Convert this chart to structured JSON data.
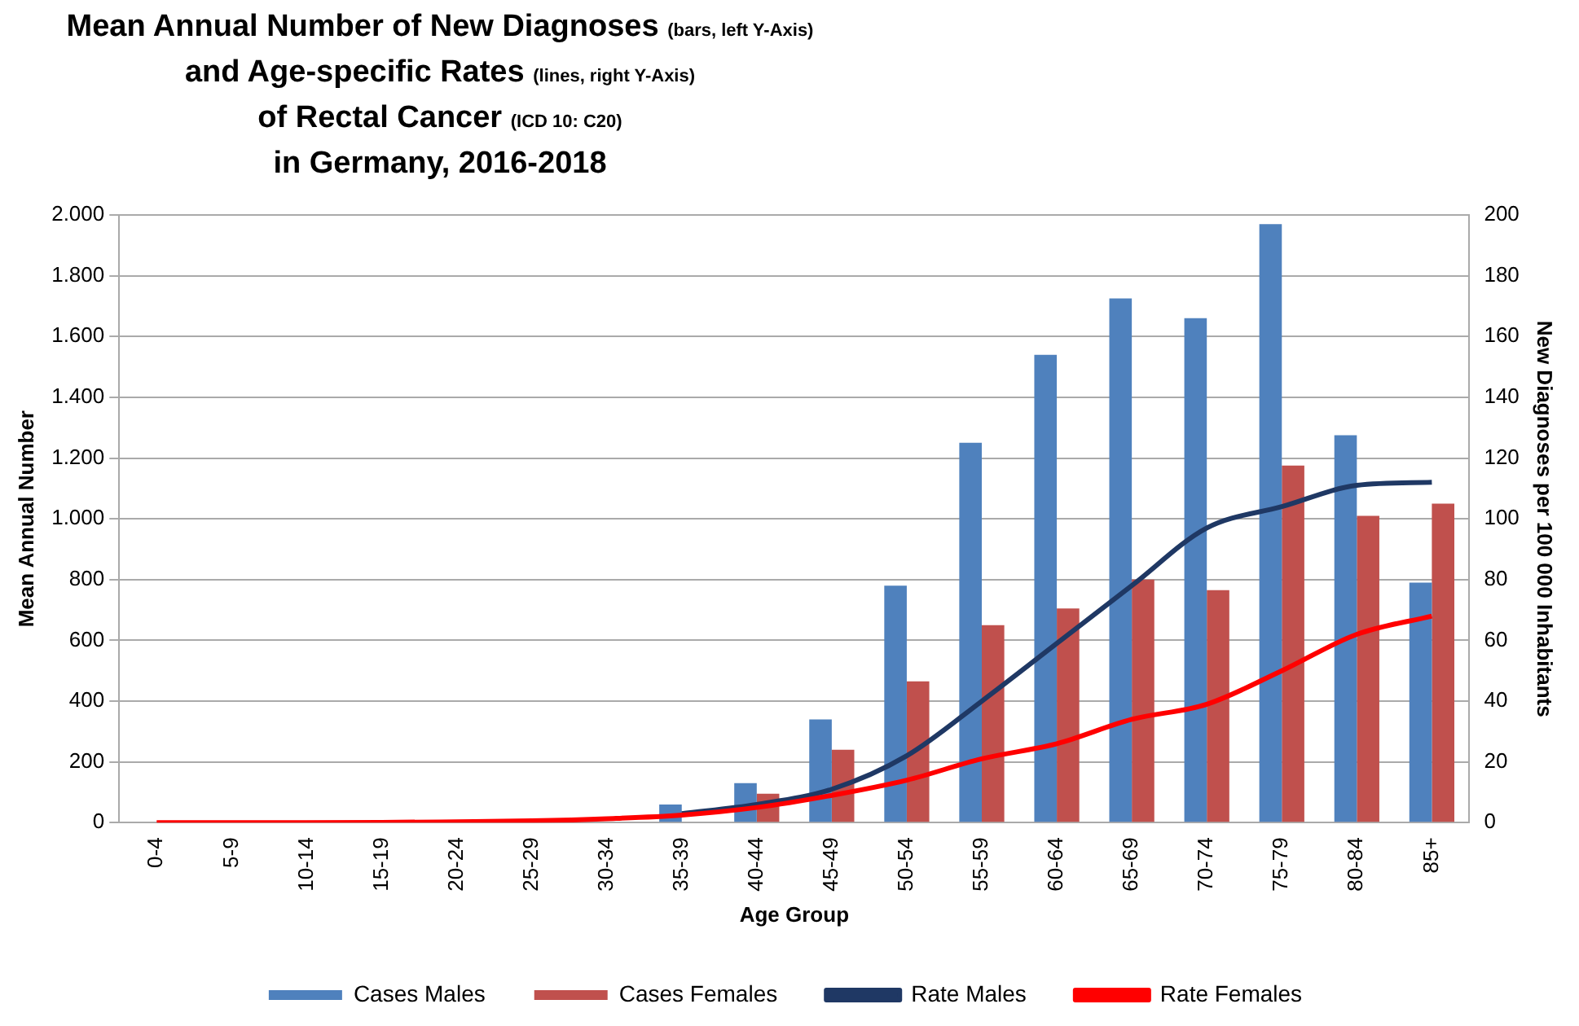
{
  "chart_data": {
    "type": "bar",
    "title": "Mean Annual Number of New Diagnoses (bars, left Y-Axis)\nand Age-specific Rates (lines, right Y-Axis)\nof Rectal Cancer (ICD 10: C20)\nin Germany, 2016-2018",
    "xlabel": "Age Group",
    "ylabel": "Mean Annual Number",
    "y2label": "New Diagnoses per 100 000 Inhabitants",
    "categories": [
      "0-4",
      "5-9",
      "10-14",
      "15-19",
      "20-24",
      "25-29",
      "30-34",
      "35-39",
      "40-44",
      "45-49",
      "50-54",
      "55-59",
      "60-64",
      "65-69",
      "70-74",
      "75-79",
      "80-84",
      "85+"
    ],
    "series": [
      {
        "name": "Cases Males",
        "color": "#4f81bd",
        "values": [
          0,
          0,
          0,
          null,
          null,
          null,
          null,
          60,
          130,
          340,
          780,
          1250,
          1540,
          1725,
          1660,
          1970,
          1275,
          790
        ]
      },
      {
        "name": "Cases Females",
        "color": "#c0504d",
        "values": [
          0,
          0,
          0,
          1,
          3,
          6,
          null,
          null,
          95,
          240,
          465,
          650,
          705,
          800,
          765,
          1175,
          1010,
          1050
        ]
      },
      {
        "name": "Rate Males",
        "type": "line",
        "axis": "y2",
        "color": "#1f3864",
        "values": [
          null,
          null,
          null,
          null,
          null,
          null,
          null,
          3,
          6,
          11,
          22,
          40,
          59,
          78,
          97,
          104,
          111,
          112
        ]
      },
      {
        "name": "Rate Females",
        "type": "line",
        "axis": "y2",
        "color": "#ff0000",
        "values": [
          0,
          0,
          0,
          0.1,
          0.3,
          0.6,
          1.3,
          2.5,
          5,
          9,
          14,
          21,
          26,
          34,
          39,
          50,
          62,
          68
        ]
      }
    ],
    "ylim": [
      0,
      2000
    ],
    "yticks": [
      0,
      200,
      400,
      600,
      800,
      {
        "value": 1000,
        "label": "1.000"
      },
      {
        "value": 1200,
        "label": "1.200"
      },
      {
        "value": 1400,
        "label": "1.400"
      },
      {
        "value": 1600,
        "label": "1.600"
      },
      {
        "value": 1800,
        "label": "1.800"
      },
      {
        "value": 2000,
        "label": "2.000"
      }
    ],
    "y2lim": [
      0,
      200
    ],
    "y2ticks": [
      0,
      20,
      40,
      60,
      80,
      100,
      120,
      140,
      160,
      180,
      200
    ],
    "grid": "y",
    "legend": "bottom",
    "marker": "none"
  }
}
